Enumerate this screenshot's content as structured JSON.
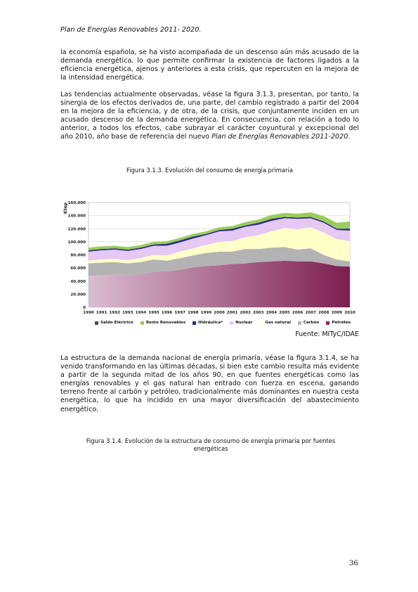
{
  "header": {
    "title": "Plan de Energías Renovables 2011- 2020."
  },
  "para1": {
    "text": "la economía española, se ha visto acompañada de un descenso aún más acusado de la demanda energética, lo que permite confirmar la existencia de factores ligados a la eficiencia energética, ajenos y anteriores a esta crisis, que repercuten en la mejora de la intensidad energética."
  },
  "para2": {
    "text": "Las tendencias actualmente observadas, véase la figura 3.1.3, presentan, por tanto, la sinergia de los efectos derivados de, una parte, del cambio registrado a partir del 2004 en la mejora de la eficiencia, y de otra, de la crisis, que conjuntamente inciden en un acusado descenso de la demanda energética. En consecuencia, con relación a todo lo anterior, a todos los efectos, cabe subrayar el carácter coyuntural y excepcional del año 2010, año base de referencia del nuevo ",
    "italic": "Plan de Energías Renovables 2011-2020",
    "end": "."
  },
  "figure1": {
    "caption": "Figura 3.1.3. Evolución del consumo de energía primaria",
    "source": "Fuente: MITyC/IDAE"
  },
  "para3": {
    "text": "La estructura de la demanda nacional de energía primaria, véase la figura 3.1.4, se ha venido transformando en las últimas décadas, si bien este cambio resulta más evidente a partir de la segunda mitad de los años 90, en que fuentes energéticas como las energías renovables y el gas natural han entrado con fuerza en escena, ganando terreno frente al carbón y petróleo, tradicionalmente más dominantes en nuestra cesta energética, lo que ha incidido en una mayor diversificación del abastecimiento energético."
  },
  "figure2": {
    "caption": "Figura 3.1.4. Evolución de la estructura de consumo de energía primaria por fuentes energéticas"
  },
  "page_number": "36",
  "chart_data": {
    "type": "area",
    "stacked": true,
    "title": "",
    "ylabel": "Ktep",
    "xlabel": "",
    "ylim": [
      0,
      160000
    ],
    "yticks": [
      "0",
      "20.000",
      "40.000",
      "60.000",
      "80.000",
      "100.000",
      "120.000",
      "140.000",
      "160.000"
    ],
    "x": [
      "1990",
      "1991",
      "1992",
      "1993",
      "1994",
      "1995",
      "1996",
      "1997",
      "1998",
      "1999",
      "2000",
      "2001",
      "2002",
      "2003",
      "2004",
      "2005",
      "2006",
      "2007",
      "2008",
      "2009",
      "2010"
    ],
    "grid": true,
    "legend": "bottom",
    "series": [
      {
        "name": "Petróleo",
        "color": "#8e2a5c",
        "values": [
          48000,
          49000,
          50000,
          49000,
          51000,
          54000,
          55000,
          57000,
          61000,
          63000,
          64000,
          66000,
          67000,
          69000,
          70000,
          71000,
          70000,
          70000,
          67000,
          63000,
          62000
        ]
      },
      {
        "name": "Carbón",
        "color": "#b3b3b3",
        "values": [
          19000,
          19000,
          19000,
          18000,
          18000,
          19000,
          16000,
          18000,
          18000,
          20000,
          21000,
          19000,
          22000,
          20000,
          21000,
          21000,
          18000,
          20000,
          13000,
          10000,
          8000
        ]
      },
      {
        "name": "Gas natural",
        "color": "#ffffc8",
        "values": [
          4000,
          5000,
          5000,
          5000,
          6000,
          7000,
          8000,
          10000,
          11000,
          12000,
          15000,
          16000,
          18000,
          21000,
          25000,
          29000,
          31000,
          32000,
          34000,
          31000,
          31000
        ]
      },
      {
        "name": "Nuclear",
        "color": "#e6c8f5",
        "values": [
          14000,
          14000,
          14000,
          14000,
          14000,
          14000,
          15000,
          14000,
          15000,
          15000,
          16000,
          16000,
          16000,
          16000,
          16000,
          15000,
          16000,
          14000,
          15000,
          14000,
          16000
        ]
      },
      {
        "name": "Hidráulica*",
        "color": "#2b2b8c",
        "values": [
          2000,
          2000,
          2000,
          2000,
          2000,
          2000,
          3000,
          3000,
          3000,
          2000,
          2000,
          3000,
          2000,
          3000,
          3000,
          2000,
          2000,
          2000,
          2000,
          2000,
          3000
        ]
      },
      {
        "name": "Resto Renovables",
        "color": "#9acd5a",
        "values": [
          4000,
          4000,
          4000,
          4000,
          4000,
          4000,
          4000,
          4000,
          4000,
          4000,
          4000,
          4000,
          5000,
          5000,
          6000,
          6000,
          6000,
          7000,
          8000,
          9000,
          11000
        ]
      },
      {
        "name": "Saldo Eléctrico",
        "color": "#4d4d4d",
        "values": [
          0,
          0,
          0,
          0,
          0,
          0,
          0,
          0,
          0,
          0,
          0,
          0,
          0,
          0,
          0,
          0,
          0,
          0,
          0,
          0,
          0
        ]
      }
    ]
  }
}
